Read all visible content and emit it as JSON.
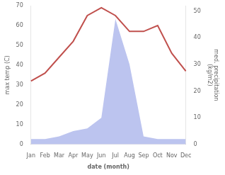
{
  "chart_data": {
    "type": "line",
    "categories": [
      "Jan",
      "Feb",
      "Mar",
      "Apr",
      "May",
      "Jun",
      "Jul",
      "Aug",
      "Sep",
      "Oct",
      "Nov",
      "Dec"
    ],
    "xlabel": "date (month)",
    "ylabel": "max temp (C)",
    "y2label": "med. precipitation\n(kg/m2)",
    "series": [
      {
        "type": "line",
        "color": "#c0504d",
        "values": [
          32,
          36,
          44,
          52,
          65,
          69,
          65,
          57,
          57,
          60,
          46,
          37
        ]
      },
      {
        "type": "area",
        "color": "#bcc4ef",
        "axis": "y2",
        "values": [
          2,
          2,
          3,
          5,
          6,
          10,
          47,
          30,
          3,
          2,
          2,
          2
        ]
      }
    ],
    "ylim": [
      0,
      70
    ],
    "yticks": [
      0,
      10,
      20,
      30,
      40,
      50,
      60,
      70
    ],
    "y2lim": [
      0,
      52
    ],
    "y2ticks": [
      0,
      10,
      20,
      30,
      40,
      50
    ],
    "grid": false
  }
}
